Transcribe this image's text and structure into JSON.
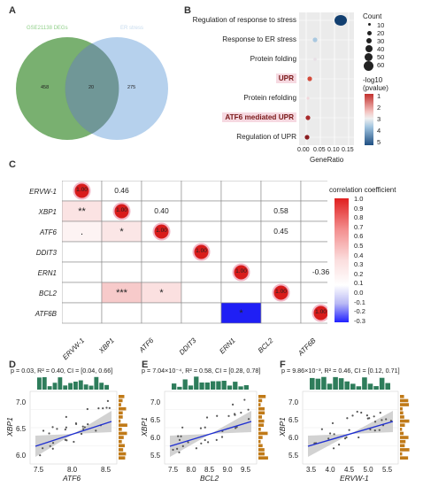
{
  "panels": {
    "A": "A",
    "B": "B",
    "C": "C",
    "D": "D",
    "E": "E",
    "F": "F"
  },
  "venn": {
    "left_label": "GSE21138 DEGs",
    "right_label": "ER stress",
    "left_only": "458",
    "overlap": "20",
    "right_only": "275",
    "left_color": "#6aa760",
    "right_color": "#a9c9ea"
  },
  "enrichment": {
    "xlabel": "GeneRatio",
    "x_ticks": [
      "0.00",
      "0.05",
      "0.10",
      "0.15"
    ],
    "size_legend_title": "Count",
    "size_legend": [
      "10",
      "20",
      "30",
      "40",
      "50",
      "60"
    ],
    "color_legend_title": "-log10\n(pvalue)",
    "color_legend_ticks": [
      "1",
      "2",
      "3",
      "4",
      "5"
    ],
    "terms": [
      {
        "label": "Regulation of response to stress",
        "highlight": false
      },
      {
        "label": "Response to ER stress",
        "highlight": false
      },
      {
        "label": "Protein folding",
        "highlight": false
      },
      {
        "label": "UPR",
        "highlight": true
      },
      {
        "label": "Protein refolding",
        "highlight": false
      },
      {
        "label": "ATF6 mediated UPR",
        "highlight": true
      },
      {
        "label": "Regulation of UPR",
        "highlight": false
      }
    ]
  },
  "corr": {
    "legend_title": "correlation coefficient",
    "legend_ticks": [
      "1.0",
      "0.9",
      "0.8",
      "0.7",
      "0.6",
      "0.5",
      "0.4",
      "0.3",
      "0.2",
      "0.1",
      "0.0",
      "-0.1",
      "-0.2",
      "-0.3"
    ],
    "genes": [
      "ERVW-1",
      "XBP1",
      "ATF6",
      "DDIT3",
      "ERN1",
      "BCL2",
      "ATF6B"
    ],
    "diag_value": "1.00",
    "upper": [
      {
        "r": 0,
        "c": 1,
        "v": "0.46"
      },
      {
        "r": 1,
        "c": 2,
        "v": "0.40"
      },
      {
        "r": 1,
        "c": 5,
        "v": "0.58"
      },
      {
        "r": 2,
        "c": 5,
        "v": "0.45"
      },
      {
        "r": 4,
        "c": 6,
        "v": "-0.36"
      }
    ],
    "lower": [
      {
        "r": 1,
        "c": 0,
        "v": "**"
      },
      {
        "r": 2,
        "c": 0,
        "v": "."
      },
      {
        "r": 2,
        "c": 1,
        "v": "*"
      },
      {
        "r": 5,
        "c": 1,
        "v": "***"
      },
      {
        "r": 5,
        "c": 2,
        "v": "*"
      },
      {
        "r": 6,
        "c": 4,
        "v": "*"
      }
    ]
  },
  "scatter": {
    "D": {
      "stat": "p = 0.03, R² = 0.40, CI = [0.04, 0.66]",
      "xlabel": "ATF6",
      "ylabel": "XBP1",
      "x_ticks": [
        "7.5",
        "8.0",
        "8.5"
      ],
      "y_ticks": [
        "6.0",
        "6.5",
        "7.0"
      ]
    },
    "E": {
      "stat": "p = 7.04×10⁻⁴, R² = 0.58, CI = [0.28, 0.78]",
      "xlabel": "BCL2",
      "ylabel": "XBP1",
      "x_ticks": [
        "7.5",
        "8.0",
        "8.5",
        "9.0",
        "9.5"
      ],
      "y_ticks": [
        "5.5",
        "6.0",
        "6.5",
        "7.0"
      ]
    },
    "F": {
      "stat": "p = 9.86×10⁻³, R² = 0.46, CI = [0.12, 0.71]",
      "xlabel": "ERVW-1",
      "ylabel": "XBP1",
      "x_ticks": [
        "3.5",
        "4.0",
        "4.5",
        "5.0",
        "5.5"
      ],
      "y_ticks": [
        "5.5",
        "6.0",
        "6.5",
        "7.0"
      ]
    }
  }
}
